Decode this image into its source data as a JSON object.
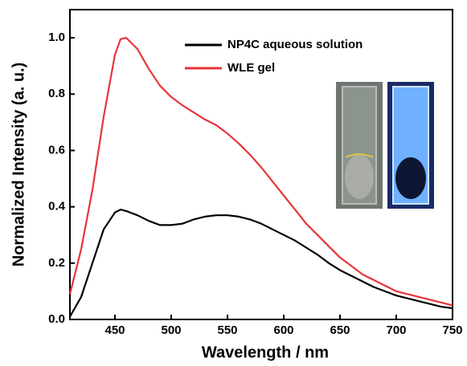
{
  "chart_data": {
    "type": "line",
    "x_label": "Wavelength / nm",
    "y_label": "Normalized Intensity (a. u.)",
    "xlim": [
      410,
      750
    ],
    "ylim": [
      0,
      1.1
    ],
    "xticks": [
      450,
      500,
      550,
      600,
      650,
      700,
      750
    ],
    "yticks": [
      {
        "value": 0,
        "label": "0.0"
      },
      0.2,
      0.4,
      0.6,
      0.8,
      {
        "value": 1,
        "label": "1.0"
      }
    ],
    "legend": "upper center",
    "x": [
      410,
      420,
      430,
      440,
      450,
      455,
      460,
      470,
      480,
      490,
      500,
      510,
      520,
      530,
      540,
      550,
      560,
      570,
      580,
      590,
      600,
      610,
      620,
      630,
      640,
      650,
      660,
      670,
      680,
      690,
      700,
      710,
      720,
      730,
      740,
      750
    ],
    "series": [
      {
        "name": "NP4C aqueous solution",
        "color": "#000000",
        "values": [
          0.01,
          0.08,
          0.2,
          0.32,
          0.38,
          0.39,
          0.385,
          0.37,
          0.35,
          0.335,
          0.335,
          0.34,
          0.355,
          0.365,
          0.37,
          0.37,
          0.365,
          0.355,
          0.34,
          0.32,
          0.3,
          0.28,
          0.255,
          0.23,
          0.2,
          0.175,
          0.155,
          0.135,
          0.115,
          0.1,
          0.085,
          0.075,
          0.065,
          0.055,
          0.045,
          0.04
        ]
      },
      {
        "name": "WLE gel",
        "color": "#e8343a",
        "values": [
          0.09,
          0.25,
          0.46,
          0.72,
          0.94,
          0.995,
          1.0,
          0.96,
          0.89,
          0.83,
          0.79,
          0.76,
          0.735,
          0.71,
          0.69,
          0.66,
          0.625,
          0.585,
          0.54,
          0.49,
          0.44,
          0.39,
          0.34,
          0.3,
          0.26,
          0.22,
          0.19,
          0.16,
          0.14,
          0.12,
          0.1,
          0.09,
          0.08,
          0.07,
          0.06,
          0.05
        ]
      }
    ]
  }
}
